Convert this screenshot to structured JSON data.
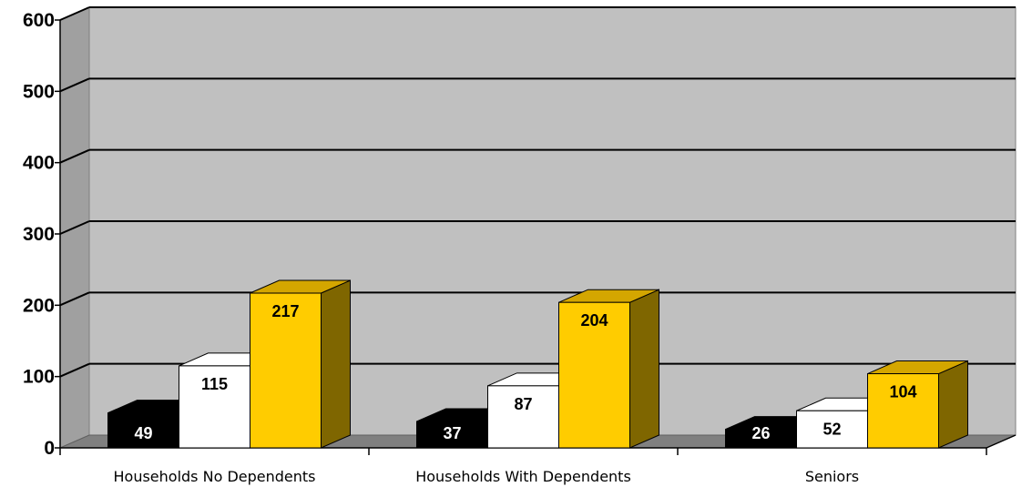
{
  "chart_data": {
    "type": "bar",
    "categories": [
      "Households No Dependents",
      "Households With Dependents",
      "Seniors"
    ],
    "series": [
      {
        "values": [
          49,
          37,
          26
        ],
        "color": "#000000",
        "label_color": "#ffffff"
      },
      {
        "values": [
          115,
          87,
          52
        ],
        "color": "#ffffff",
        "label_color": "#000000"
      },
      {
        "values": [
          217,
          204,
          104
        ],
        "color": "#ffcc00",
        "label_color": "#000000"
      }
    ],
    "ylim": [
      0,
      600
    ],
    "yticks": [
      0,
      100,
      200,
      300,
      400,
      500,
      600
    ],
    "grid": true,
    "three_d": true,
    "colors": {
      "wall": "#c0c0c0",
      "floor": "#808080",
      "gridline": "#000000",
      "gold_top": "#d4a600",
      "gold_side": "#7f6600"
    }
  }
}
